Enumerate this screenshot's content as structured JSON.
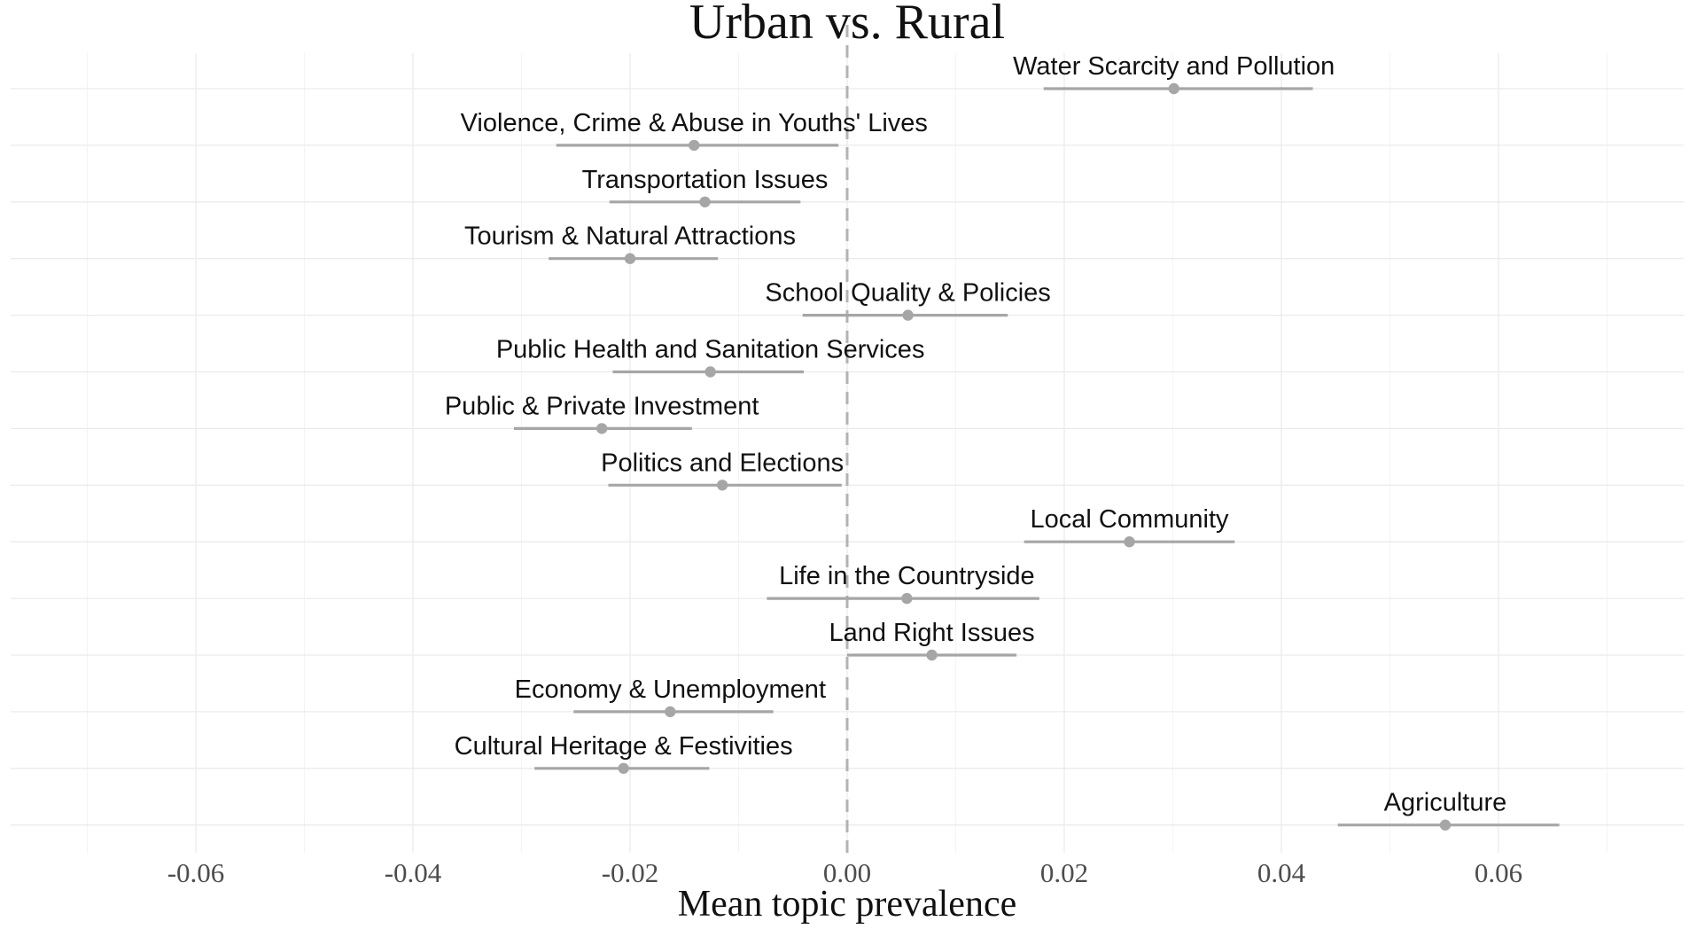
{
  "chart_data": {
    "type": "scatter",
    "subtype": "point-range (coefficient plot with confidence intervals)",
    "title": "Urban vs. Rural",
    "xlabel": "Mean topic prevalence",
    "ylabel": "",
    "xlim": [
      -0.07,
      0.077
    ],
    "x_ticks": [
      "-0.06",
      "-0.04",
      "-0.02",
      "0.00",
      "0.02",
      "0.04",
      "0.06"
    ],
    "x_tick_values": [
      -0.06,
      -0.04,
      -0.02,
      0.0,
      0.02,
      0.04,
      0.06
    ],
    "reference_line": {
      "x": 0.0,
      "style": "dashed"
    },
    "grid": true,
    "legend": "none",
    "color": "#a6a6a6",
    "points": [
      {
        "label": "Water Scarcity and Pollution",
        "estimate": 0.0301,
        "ci_low": 0.0181,
        "ci_high": 0.0429
      },
      {
        "label": "Violence, Crime & Abuse in Youths' Lives",
        "estimate": -0.0141,
        "ci_low": -0.0268,
        "ci_high": -0.0008
      },
      {
        "label": "Transportation Issues",
        "estimate": -0.0131,
        "ci_low": -0.0219,
        "ci_high": -0.0043
      },
      {
        "label": "Tourism & Natural Attractions",
        "estimate": -0.02,
        "ci_low": -0.0275,
        "ci_high": -0.0119
      },
      {
        "label": "School Quality & Policies",
        "estimate": 0.0056,
        "ci_low": -0.0041,
        "ci_high": 0.0148
      },
      {
        "label": "Public Health and Sanitation Services",
        "estimate": -0.0126,
        "ci_low": -0.0216,
        "ci_high": -0.004
      },
      {
        "label": "Public & Private Investment",
        "estimate": -0.0226,
        "ci_low": -0.0307,
        "ci_high": -0.0143
      },
      {
        "label": "Politics and Elections",
        "estimate": -0.0115,
        "ci_low": -0.022,
        "ci_high": -0.0005
      },
      {
        "label": "Local Community",
        "estimate": 0.026,
        "ci_low": 0.0163,
        "ci_high": 0.0357
      },
      {
        "label": "Life in the Countryside",
        "estimate": 0.0055,
        "ci_low": -0.0074,
        "ci_high": 0.0177
      },
      {
        "label": "Land Right Issues",
        "estimate": 0.0078,
        "ci_low": 0.0,
        "ci_high": 0.0156
      },
      {
        "label": "Economy & Unemployment",
        "estimate": -0.0163,
        "ci_low": -0.0252,
        "ci_high": -0.0068
      },
      {
        "label": "Cultural Heritage & Festivities",
        "estimate": -0.0206,
        "ci_low": -0.0288,
        "ci_high": -0.0127
      },
      {
        "label": "Agriculture",
        "estimate": 0.0551,
        "ci_low": 0.0452,
        "ci_high": 0.0656
      }
    ]
  }
}
